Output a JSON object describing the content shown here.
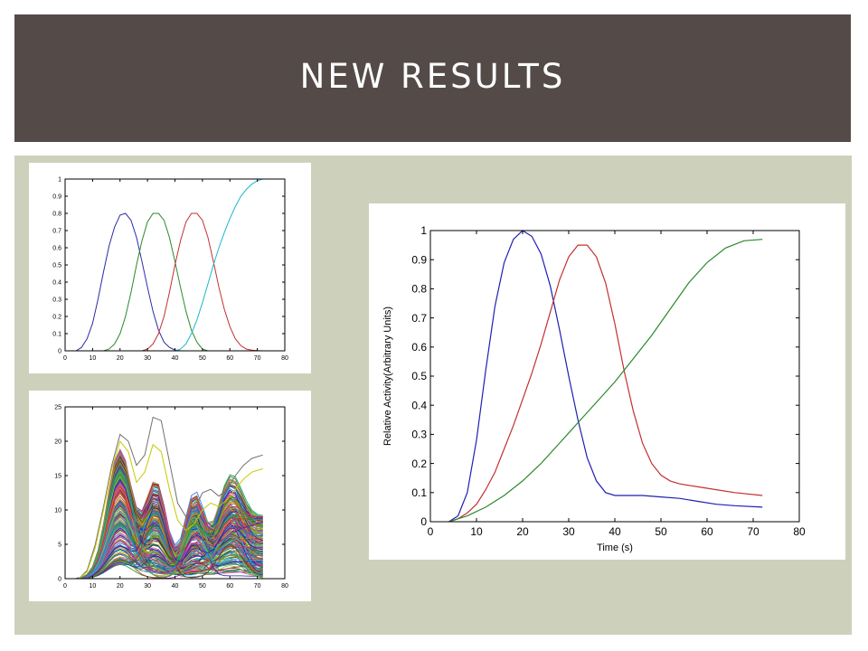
{
  "slide": {
    "title": "NEW RESULTS"
  },
  "colors": {
    "title_bar": "#544b49",
    "content_bg": "#cdd1bb",
    "blue": "#1f1fb4",
    "green": "#2a8a2a",
    "red": "#c33030",
    "cyan": "#1ab8c8"
  },
  "chart_data": [
    {
      "type": "line",
      "title": "",
      "xlabel": "",
      "ylabel": "",
      "xlim": [
        0,
        80
      ],
      "ylim": [
        0,
        1
      ],
      "xticks": [
        0,
        10,
        20,
        30,
        40,
        50,
        60,
        70,
        80
      ],
      "yticks": [
        0,
        0.1,
        0.2,
        0.3,
        0.4,
        0.5,
        0.6,
        0.7,
        0.8,
        0.9,
        1
      ],
      "grid": false,
      "series": [
        {
          "color": "#2b2ba8",
          "x": [
            4,
            6,
            8,
            10,
            12,
            14,
            16,
            18,
            20,
            22,
            24,
            26,
            28,
            30,
            32,
            34,
            36,
            38,
            40,
            42
          ],
          "y": [
            0,
            0.02,
            0.07,
            0.16,
            0.3,
            0.46,
            0.61,
            0.72,
            0.79,
            0.8,
            0.76,
            0.66,
            0.52,
            0.37,
            0.23,
            0.12,
            0.05,
            0.02,
            0.005,
            0
          ]
        },
        {
          "color": "#2a8a2a",
          "x": [
            14,
            16,
            18,
            20,
            22,
            24,
            26,
            28,
            30,
            32,
            34,
            36,
            38,
            40,
            42,
            44,
            46,
            48,
            50,
            52
          ],
          "y": [
            0,
            0.01,
            0.04,
            0.1,
            0.2,
            0.34,
            0.5,
            0.64,
            0.75,
            0.8,
            0.8,
            0.76,
            0.66,
            0.52,
            0.37,
            0.23,
            0.12,
            0.05,
            0.01,
            0
          ]
        },
        {
          "color": "#c33030",
          "x": [
            28,
            30,
            32,
            34,
            36,
            38,
            40,
            42,
            44,
            46,
            48,
            50,
            52,
            54,
            56,
            58,
            60,
            62,
            64,
            66,
            68,
            70,
            72
          ],
          "y": [
            0,
            0.01,
            0.04,
            0.1,
            0.2,
            0.34,
            0.5,
            0.64,
            0.75,
            0.8,
            0.8,
            0.76,
            0.66,
            0.52,
            0.37,
            0.24,
            0.14,
            0.07,
            0.03,
            0.01,
            0.004,
            0.001,
            0
          ]
        },
        {
          "color": "#1ab8c8",
          "x": [
            40,
            42,
            44,
            46,
            48,
            50,
            52,
            54,
            56,
            58,
            60,
            62,
            64,
            66,
            68,
            70,
            72
          ],
          "y": [
            0,
            0.01,
            0.04,
            0.1,
            0.18,
            0.28,
            0.39,
            0.5,
            0.6,
            0.69,
            0.77,
            0.84,
            0.9,
            0.94,
            0.97,
            0.99,
            1
          ]
        }
      ]
    },
    {
      "type": "line",
      "title": "",
      "xlabel": "",
      "ylabel": "",
      "xlim": [
        0,
        80
      ],
      "ylim": [
        0,
        25
      ],
      "xticks": [
        0,
        10,
        20,
        30,
        40,
        50,
        60,
        70,
        80
      ],
      "yticks": [
        0,
        5,
        10,
        15,
        20,
        25
      ],
      "grid": false,
      "note_series_many": true,
      "series": [
        {
          "color": "#707070",
          "x": [
            5,
            8,
            11,
            14,
            17,
            20,
            23,
            26,
            29,
            32,
            35,
            38,
            41,
            44,
            47,
            50,
            53,
            56,
            59,
            62,
            65,
            68,
            72
          ],
          "y": [
            0,
            1.2,
            5,
            10.5,
            16.5,
            21,
            20,
            16.5,
            18,
            23.5,
            23,
            17,
            11,
            9,
            10,
            12.5,
            13,
            12,
            13,
            15,
            16.5,
            17.5,
            18
          ]
        },
        {
          "color": "#c8c800",
          "x": [
            5,
            8,
            11,
            14,
            17,
            20,
            23,
            26,
            29,
            32,
            35,
            38,
            41,
            44,
            47,
            50,
            53,
            56,
            59,
            62,
            65,
            68,
            72
          ],
          "y": [
            0,
            1,
            4.5,
            10,
            16,
            20,
            18.5,
            14,
            15.5,
            19.5,
            18.5,
            13,
            8.5,
            7,
            8,
            10,
            11,
            10.5,
            11.5,
            13,
            14.5,
            15.5,
            16
          ]
        }
      ]
    },
    {
      "type": "line",
      "title": "",
      "xlabel": "Time (s)",
      "ylabel": "Relative Activity(Arbitrary Units)",
      "xlim": [
        0,
        80
      ],
      "ylim": [
        0,
        1
      ],
      "xticks": [
        0,
        10,
        20,
        30,
        40,
        50,
        60,
        70,
        80
      ],
      "yticks": [
        0,
        0.1,
        0.2,
        0.3,
        0.4,
        0.5,
        0.6,
        0.7,
        0.8,
        0.9,
        1
      ],
      "grid": false,
      "series": [
        {
          "color": "#1f1fb4",
          "x": [
            4,
            6,
            8,
            10,
            12,
            14,
            16,
            18,
            20,
            22,
            24,
            26,
            28,
            30,
            32,
            34,
            36,
            38,
            40,
            42,
            46,
            50,
            54,
            58,
            62,
            66,
            72
          ],
          "y": [
            0,
            0.02,
            0.1,
            0.28,
            0.52,
            0.74,
            0.89,
            0.97,
            1,
            0.98,
            0.92,
            0.81,
            0.66,
            0.5,
            0.35,
            0.22,
            0.14,
            0.1,
            0.09,
            0.09,
            0.09,
            0.085,
            0.08,
            0.07,
            0.06,
            0.055,
            0.05
          ]
        },
        {
          "color": "#c33030",
          "x": [
            4,
            6,
            8,
            10,
            12,
            14,
            16,
            18,
            20,
            22,
            24,
            26,
            28,
            30,
            32,
            34,
            36,
            38,
            40,
            42,
            44,
            46,
            48,
            50,
            52,
            54,
            58,
            62,
            66,
            72
          ],
          "y": [
            0,
            0.01,
            0.03,
            0.06,
            0.11,
            0.17,
            0.25,
            0.33,
            0.42,
            0.51,
            0.61,
            0.72,
            0.83,
            0.91,
            0.95,
            0.95,
            0.91,
            0.82,
            0.68,
            0.52,
            0.38,
            0.27,
            0.2,
            0.16,
            0.14,
            0.13,
            0.12,
            0.11,
            0.1,
            0.09
          ]
        },
        {
          "color": "#2a8a2a",
          "x": [
            4,
            8,
            12,
            16,
            20,
            24,
            28,
            32,
            36,
            40,
            44,
            48,
            52,
            56,
            60,
            64,
            68,
            72
          ],
          "y": [
            0,
            0.02,
            0.05,
            0.09,
            0.14,
            0.2,
            0.27,
            0.34,
            0.41,
            0.48,
            0.56,
            0.64,
            0.73,
            0.82,
            0.89,
            0.94,
            0.965,
            0.97
          ]
        }
      ]
    }
  ]
}
